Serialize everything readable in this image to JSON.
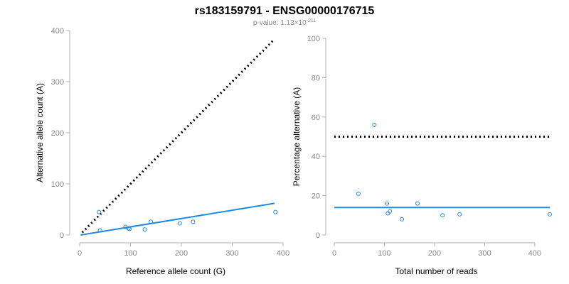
{
  "title": "rs183159791 - ENSG00000176715",
  "subtitle": {
    "prefix": "p-value: 1.13×10",
    "exponent": "-211"
  },
  "colors": {
    "points": "#1e88e5",
    "fit": "#1e88e5",
    "reference": "#000000"
  },
  "chart_data": [
    {
      "type": "scatter",
      "xlabel": "Reference allele count (G)",
      "ylabel": "Alternative allele count (A)",
      "xlim": [
        0,
        400
      ],
      "ylim": [
        0,
        400
      ],
      "xticks": [
        0,
        100,
        200,
        300,
        400
      ],
      "yticks": [
        0,
        100,
        200,
        300,
        400
      ],
      "grid": false,
      "points": [
        {
          "x": 38,
          "y": 45
        },
        {
          "x": 40,
          "y": 9
        },
        {
          "x": 90,
          "y": 16
        },
        {
          "x": 96,
          "y": 13
        },
        {
          "x": 98,
          "y": 12
        },
        {
          "x": 128,
          "y": 11
        },
        {
          "x": 140,
          "y": 26
        },
        {
          "x": 197,
          "y": 23
        },
        {
          "x": 223,
          "y": 26
        },
        {
          "x": 385,
          "y": 45
        }
      ],
      "fit_line": {
        "x": [
          2,
          383
        ],
        "y": [
          0,
          62
        ],
        "style": "solid"
      },
      "reference_line": {
        "x": [
          5,
          383
        ],
        "y": [
          5,
          383
        ],
        "style": "dotted"
      }
    },
    {
      "type": "scatter",
      "xlabel": "Total number of reads",
      "ylabel": "Percentage alternative (A)",
      "xlim": [
        0,
        430
      ],
      "ylim": [
        0,
        100
      ],
      "xticks": [
        0,
        100,
        200,
        300,
        400
      ],
      "yticks": [
        0,
        20,
        40,
        60,
        80,
        100
      ],
      "grid": false,
      "points": [
        {
          "x": 48,
          "y": 21
        },
        {
          "x": 80,
          "y": 56
        },
        {
          "x": 105,
          "y": 16
        },
        {
          "x": 107,
          "y": 11
        },
        {
          "x": 111,
          "y": 12
        },
        {
          "x": 135,
          "y": 8
        },
        {
          "x": 166,
          "y": 16
        },
        {
          "x": 216,
          "y": 10
        },
        {
          "x": 250,
          "y": 10.5
        },
        {
          "x": 430,
          "y": 10.5
        }
      ],
      "fit_line": {
        "x": [
          0,
          430
        ],
        "y": [
          14,
          14
        ],
        "style": "solid"
      },
      "reference_line": {
        "x": [
          0,
          430
        ],
        "y": [
          50,
          50
        ],
        "style": "dotted"
      }
    }
  ]
}
